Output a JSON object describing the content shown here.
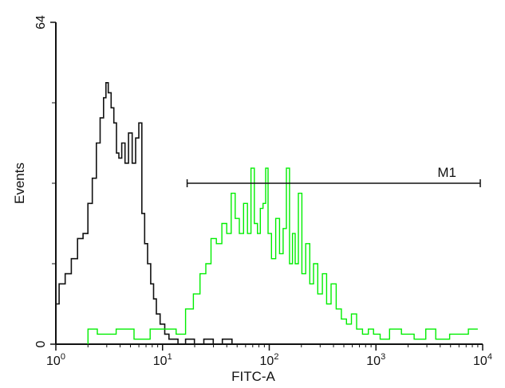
{
  "chart_data": {
    "type": "histogram",
    "xlabel": "FITC-A",
    "ylabel": "Events",
    "x_scale": "log",
    "xlim": [
      1,
      10000
    ],
    "ylim": [
      0,
      64
    ],
    "x_ticks": [
      {
        "value": 1,
        "base": "10",
        "exp": "0"
      },
      {
        "value": 10,
        "base": "10",
        "exp": "1"
      },
      {
        "value": 100,
        "base": "10",
        "exp": "2"
      },
      {
        "value": 1000,
        "base": "10",
        "exp": "3"
      },
      {
        "value": 10000,
        "base": "10",
        "exp": "4"
      }
    ],
    "y_ticks": [
      {
        "value": 0,
        "label": "0"
      },
      {
        "value": 64,
        "label": "64"
      }
    ],
    "y_minor_ticks": [
      16,
      32,
      48
    ],
    "gate": {
      "label": "M1",
      "x_start": 17,
      "x_end": 9500,
      "y": 32
    },
    "series": [
      {
        "color": "#111111",
        "x": [
          1.0,
          1.15,
          1.3,
          1.5,
          1.7,
          1.9,
          2.1,
          2.3,
          2.5,
          2.7,
          2.9,
          3.0,
          3.2,
          3.4,
          3.6,
          3.8,
          4.0,
          4.3,
          4.6,
          5.0,
          5.4,
          5.8,
          6.2,
          6.6,
          7.0,
          7.5,
          8.0,
          8.5,
          9.0,
          10.0,
          11,
          12,
          13,
          15,
          18,
          22,
          27,
          33,
          40,
          50
        ],
        "values": [
          8,
          12,
          14,
          17,
          21,
          22,
          28,
          33,
          40,
          45,
          49,
          52,
          50,
          47,
          44,
          38,
          37,
          40,
          36,
          42,
          36,
          41,
          44,
          26,
          20,
          16,
          12,
          9,
          6,
          4,
          2,
          1,
          1,
          0,
          1,
          0,
          1,
          0,
          1,
          0
        ]
      },
      {
        "color": "#00ee00",
        "x": [
          2.0,
          3.0,
          4.5,
          6.5,
          9.0,
          12,
          15,
          18,
          21,
          24,
          27,
          30,
          34,
          38,
          42,
          46,
          50,
          55,
          60,
          65,
          70,
          75,
          80,
          85,
          90,
          95,
          100,
          110,
          120,
          130,
          140,
          150,
          160,
          170,
          180,
          195,
          210,
          230,
          250,
          270,
          300,
          330,
          360,
          400,
          450,
          500,
          560,
          620,
          700,
          800,
          900,
          1000,
          1200,
          1500,
          2000,
          2600,
          3300,
          4000,
          6000,
          9000
        ],
        "values": [
          3,
          2,
          3,
          1,
          3,
          3,
          2,
          7,
          10,
          14,
          16,
          21,
          20,
          24,
          22,
          30,
          25,
          22,
          28,
          22,
          35,
          24,
          22,
          27,
          28,
          35,
          22,
          17,
          25,
          18,
          23,
          35,
          16,
          22,
          16,
          30,
          14,
          20,
          12,
          16,
          10,
          14,
          8,
          12,
          7,
          5,
          4,
          6,
          3,
          2,
          3,
          2,
          1,
          3,
          2,
          1,
          3,
          1,
          2,
          3
        ]
      }
    ]
  }
}
